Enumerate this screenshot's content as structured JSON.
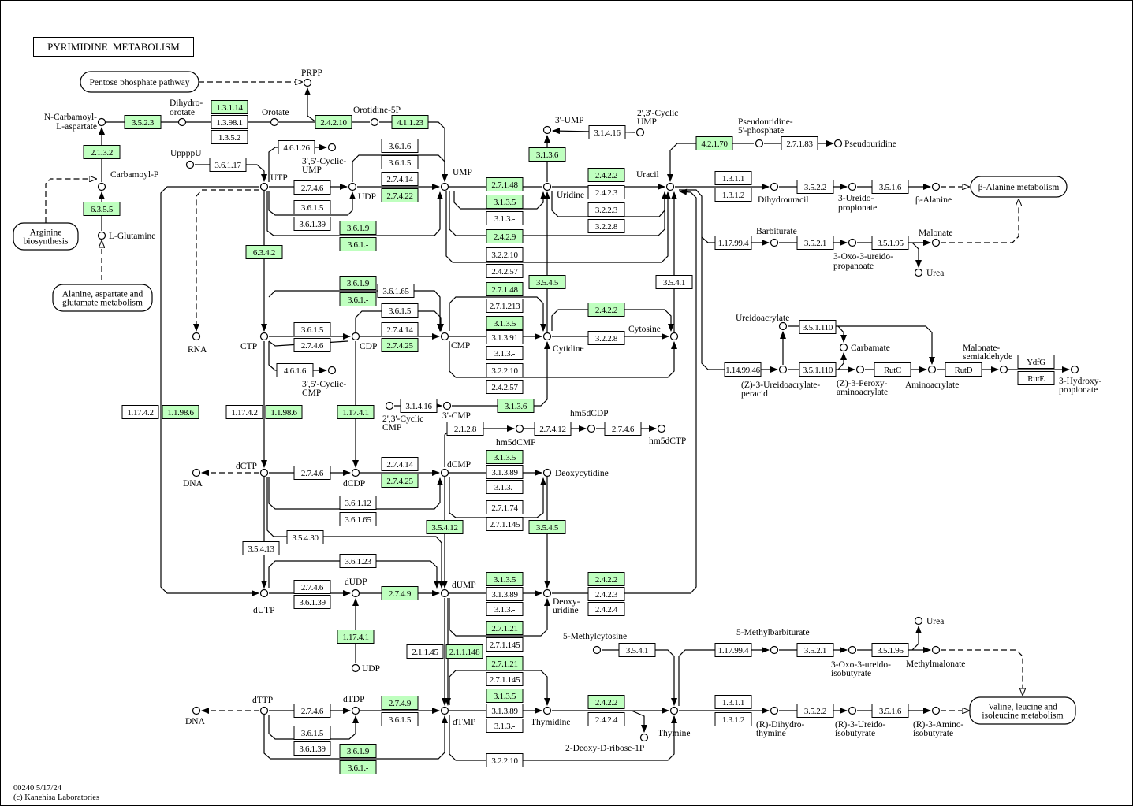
{
  "title": "PYRIMIDINE  METABOLISM",
  "footer": {
    "code_date": "00240 5/17/24",
    "copyright": "(c) Kanehisa Laboratories"
  },
  "colors": {
    "highlighted_enzyme": "#bfffbf",
    "enzyme": "#ffffff",
    "line": "#000000"
  },
  "maps": [
    {
      "lines": [
        "Pentose phosphate pathway"
      ]
    },
    {
      "lines": [
        "Arginine",
        "biosynthesis"
      ]
    },
    {
      "lines": [
        "Alanine, aspartate and",
        "glutamate metabolism"
      ]
    },
    {
      "lines": [
        "β-Alanine metabolism"
      ]
    },
    {
      "lines": [
        "Valine, leucine and",
        "isoleucine metabolism"
      ]
    }
  ],
  "enzymes": [
    {
      "label": "3.5.2.3",
      "highlighted": true
    },
    {
      "label": "1.3.1.14",
      "highlighted": true
    },
    {
      "label": "1.3.98.1",
      "highlighted": false
    },
    {
      "label": "1.3.5.2",
      "highlighted": false
    },
    {
      "label": "2.4.2.10",
      "highlighted": true
    },
    {
      "label": "4.1.1.23",
      "highlighted": true
    },
    {
      "label": "2.1.3.2",
      "highlighted": true
    },
    {
      "label": "6.3.5.5",
      "highlighted": true
    },
    {
      "label": "3.6.1.17",
      "highlighted": false
    },
    {
      "label": "4.6.1.26",
      "highlighted": false
    },
    {
      "label": "2.7.4.6",
      "highlighted": false
    },
    {
      "label": "3.6.1.5",
      "highlighted": false
    },
    {
      "label": "3.6.1.39",
      "highlighted": false
    },
    {
      "label": "3.6.1.6",
      "highlighted": false
    },
    {
      "label": "3.6.1.5",
      "highlighted": false
    },
    {
      "label": "2.7.4.14",
      "highlighted": false
    },
    {
      "label": "2.7.4.22",
      "highlighted": true
    },
    {
      "label": "3.6.1.9",
      "highlighted": true
    },
    {
      "label": "3.6.1.-",
      "highlighted": true
    },
    {
      "label": "6.3.4.2",
      "highlighted": true
    },
    {
      "label": "3.1.3.6",
      "highlighted": true
    },
    {
      "label": "3.1.4.16",
      "highlighted": false
    },
    {
      "label": "2.7.1.48",
      "highlighted": true
    },
    {
      "label": "3.1.3.5",
      "highlighted": true
    },
    {
      "label": "3.1.3.-",
      "highlighted": false
    },
    {
      "label": "2.4.2.9",
      "highlighted": true
    },
    {
      "label": "3.2.2.10",
      "highlighted": false
    },
    {
      "label": "2.4.2.57",
      "highlighted": false
    },
    {
      "label": "2.4.2.2",
      "highlighted": true
    },
    {
      "label": "2.4.2.3",
      "highlighted": false
    },
    {
      "label": "3.2.2.3",
      "highlighted": false
    },
    {
      "label": "3.2.2.8",
      "highlighted": false
    },
    {
      "label": "4.2.1.70",
      "highlighted": true
    },
    {
      "label": "2.7.1.83",
      "highlighted": false
    },
    {
      "label": "1.3.1.1",
      "highlighted": false
    },
    {
      "label": "1.3.1.2",
      "highlighted": false
    },
    {
      "label": "3.5.2.2",
      "highlighted": false
    },
    {
      "label": "3.5.1.6",
      "highlighted": false
    },
    {
      "label": "1.17.99.4",
      "highlighted": false
    },
    {
      "label": "3.5.2.1",
      "highlighted": false
    },
    {
      "label": "3.5.1.95",
      "highlighted": false
    },
    {
      "label": "3.5.4.1",
      "highlighted": false
    },
    {
      "label": "3.5.4.5",
      "highlighted": true
    },
    {
      "label": "3.6.1.9",
      "highlighted": true
    },
    {
      "label": "3.6.1.-",
      "highlighted": true
    },
    {
      "label": "3.6.1.65",
      "highlighted": false
    },
    {
      "label": "3.6.1.5",
      "highlighted": false
    },
    {
      "label": "2.7.4.6",
      "highlighted": false
    },
    {
      "label": "3.6.1.5",
      "highlighted": false
    },
    {
      "label": "2.7.4.14",
      "highlighted": false
    },
    {
      "label": "2.7.4.25",
      "highlighted": true
    },
    {
      "label": "2.7.1.48",
      "highlighted": true
    },
    {
      "label": "2.7.1.213",
      "highlighted": false
    },
    {
      "label": "3.1.3.5",
      "highlighted": true
    },
    {
      "label": "3.1.3.91",
      "highlighted": false
    },
    {
      "label": "3.1.3.-",
      "highlighted": false
    },
    {
      "label": "3.2.2.10",
      "highlighted": false
    },
    {
      "label": "2.4.2.57",
      "highlighted": false
    },
    {
      "label": "2.4.2.2",
      "highlighted": true
    },
    {
      "label": "3.2.2.8",
      "highlighted": false
    },
    {
      "label": "4.6.1.6",
      "highlighted": false
    },
    {
      "label": "3.5.1.110",
      "highlighted": false
    },
    {
      "label": "1.14.99.46",
      "highlighted": false
    },
    {
      "label": "3.5.1.110",
      "highlighted": false
    },
    {
      "label": "RutC",
      "highlighted": false
    },
    {
      "label": "RutD",
      "highlighted": false
    },
    {
      "label": "YdfG",
      "highlighted": false
    },
    {
      "label": "RutE",
      "highlighted": false
    },
    {
      "label": "3.1.4.16",
      "highlighted": false
    },
    {
      "label": "3.1.3.6",
      "highlighted": true
    },
    {
      "label": "1.17.4.2",
      "highlighted": false
    },
    {
      "label": "1.1.98.6",
      "highlighted": true
    },
    {
      "label": "1.17.4.2",
      "highlighted": false
    },
    {
      "label": "1.1.98.6",
      "highlighted": true
    },
    {
      "label": "1.17.4.1",
      "highlighted": true
    },
    {
      "label": "2.1.2.8",
      "highlighted": false
    },
    {
      "label": "2.7.4.12",
      "highlighted": false
    },
    {
      "label": "2.7.4.6",
      "highlighted": false
    },
    {
      "label": "3.1.3.5",
      "highlighted": true
    },
    {
      "label": "3.1.3.89",
      "highlighted": false
    },
    {
      "label": "3.1.3.-",
      "highlighted": false
    },
    {
      "label": "2.7.1.74",
      "highlighted": false
    },
    {
      "label": "2.7.1.145",
      "highlighted": false
    },
    {
      "label": "2.7.4.14",
      "highlighted": false
    },
    {
      "label": "2.7.4.25",
      "highlighted": true
    },
    {
      "label": "2.7.4.6",
      "highlighted": false
    },
    {
      "label": "3.6.1.12",
      "highlighted": false
    },
    {
      "label": "3.6.1.65",
      "highlighted": false
    },
    {
      "label": "3.5.4.12",
      "highlighted": true
    },
    {
      "label": "3.5.4.5",
      "highlighted": true
    },
    {
      "label": "3.5.4.30",
      "highlighted": false
    },
    {
      "label": "3.5.4.13",
      "highlighted": false
    },
    {
      "label": "3.6.1.23",
      "highlighted": false
    },
    {
      "label": "2.7.4.6",
      "highlighted": false
    },
    {
      "label": "3.6.1.39",
      "highlighted": false
    },
    {
      "label": "2.7.4.9",
      "highlighted": true
    },
    {
      "label": "3.1.3.5",
      "highlighted": true
    },
    {
      "label": "3.1.3.89",
      "highlighted": false
    },
    {
      "label": "3.1.3.-",
      "highlighted": false
    },
    {
      "label": "2.7.1.21",
      "highlighted": true
    },
    {
      "label": "2.7.1.145",
      "highlighted": false
    },
    {
      "label": "2.4.2.2",
      "highlighted": true
    },
    {
      "label": "2.4.2.3",
      "highlighted": false
    },
    {
      "label": "2.4.2.4",
      "highlighted": false
    },
    {
      "label": "1.17.4.1",
      "highlighted": true
    },
    {
      "label": "2.1.1.45",
      "highlighted": false
    },
    {
      "label": "2.1.1.148",
      "highlighted": true
    },
    {
      "label": "3.5.4.1",
      "highlighted": false
    },
    {
      "label": "1.17.99.4",
      "highlighted": false
    },
    {
      "label": "3.5.2.1",
      "highlighted": false
    },
    {
      "label": "3.5.1.95",
      "highlighted": false
    },
    {
      "label": "2.7.1.21",
      "highlighted": true
    },
    {
      "label": "2.7.1.145",
      "highlighted": false
    },
    {
      "label": "3.1.3.5",
      "highlighted": true
    },
    {
      "label": "3.1.3.89",
      "highlighted": false
    },
    {
      "label": "3.1.3.-",
      "highlighted": false
    },
    {
      "label": "2.4.2.2",
      "highlighted": true
    },
    {
      "label": "2.4.2.4",
      "highlighted": false
    },
    {
      "label": "1.3.1.1",
      "highlighted": false
    },
    {
      "label": "1.3.1.2",
      "highlighted": false
    },
    {
      "label": "3.5.2.2",
      "highlighted": false
    },
    {
      "label": "3.5.1.6",
      "highlighted": false
    },
    {
      "label": "2.7.4.6",
      "highlighted": false
    },
    {
      "label": "3.6.1.5",
      "highlighted": false
    },
    {
      "label": "3.6.1.39",
      "highlighted": false
    },
    {
      "label": "2.7.4.9",
      "highlighted": true
    },
    {
      "label": "3.6.1.5",
      "highlighted": false
    },
    {
      "label": "3.6.1.9",
      "highlighted": true
    },
    {
      "label": "3.6.1.-",
      "highlighted": true
    },
    {
      "label": "3.2.2.10",
      "highlighted": false
    }
  ],
  "compounds": [
    {
      "lines": [
        "PRPP"
      ]
    },
    {
      "lines": [
        "N-Carbamoyl-",
        "L-aspartate"
      ]
    },
    {
      "lines": [
        "Dihydro-",
        "orotate"
      ]
    },
    {
      "lines": [
        "Orotate"
      ]
    },
    {
      "lines": [
        "Orotidine-5P"
      ]
    },
    {
      "lines": [
        "Carbamoyl-P"
      ]
    },
    {
      "lines": [
        "L-Glutamine"
      ]
    },
    {
      "lines": [
        "UppppU"
      ]
    },
    {
      "lines": [
        "UTP"
      ]
    },
    {
      "lines": [
        "3',5'-Cyclic-",
        "UMP"
      ]
    },
    {
      "lines": [
        "UDP"
      ]
    },
    {
      "lines": [
        "UMP"
      ]
    },
    {
      "lines": [
        "3'-UMP"
      ]
    },
    {
      "lines": [
        "2',3'-Cyclic",
        "UMP"
      ]
    },
    {
      "lines": [
        "Uridine"
      ]
    },
    {
      "lines": [
        "Uracil"
      ]
    },
    {
      "lines": [
        "Pseudouridine-",
        "5'-phosphate"
      ]
    },
    {
      "lines": [
        "Pseudouridine"
      ]
    },
    {
      "lines": [
        "Dihydrouracil"
      ]
    },
    {
      "lines": [
        "3-Ureido-",
        "propionate"
      ]
    },
    {
      "lines": [
        "β-Alanine"
      ]
    },
    {
      "lines": [
        "Barbiturate"
      ]
    },
    {
      "lines": [
        "3-Oxo-3-ureido-",
        "propanoate"
      ]
    },
    {
      "lines": [
        "Malonate"
      ]
    },
    {
      "lines": [
        "Urea"
      ]
    },
    {
      "lines": [
        "RNA"
      ]
    },
    {
      "lines": [
        "CTP"
      ]
    },
    {
      "lines": [
        "CDP"
      ]
    },
    {
      "lines": [
        "CMP"
      ]
    },
    {
      "lines": [
        "Cytidine"
      ]
    },
    {
      "lines": [
        "Cytosine"
      ]
    },
    {
      "lines": [
        "3',5'-Cyclic-",
        "CMP"
      ]
    },
    {
      "lines": [
        "2',3'-Cyclic",
        "CMP"
      ]
    },
    {
      "lines": [
        "3'-CMP"
      ]
    },
    {
      "lines": [
        "Ureidoacrylate"
      ]
    },
    {
      "lines": [
        "Carbamate"
      ]
    },
    {
      "lines": [
        "(Z)-3-Ureidoacrylate-",
        "peracid"
      ]
    },
    {
      "lines": [
        "(Z)-3-Peroxy-",
        "aminoacrylate"
      ]
    },
    {
      "lines": [
        "Aminoacrylate"
      ]
    },
    {
      "lines": [
        "Malonate-",
        "semialdehyde"
      ]
    },
    {
      "lines": [
        "3-Hydroxy-",
        "propionate"
      ]
    },
    {
      "lines": [
        "hm5dCMP"
      ]
    },
    {
      "lines": [
        "hm5dCDP"
      ]
    },
    {
      "lines": [
        "hm5dCTP"
      ]
    },
    {
      "lines": [
        "DNA"
      ]
    },
    {
      "lines": [
        "dCTP"
      ]
    },
    {
      "lines": [
        "dCDP"
      ]
    },
    {
      "lines": [
        "dCMP"
      ]
    },
    {
      "lines": [
        "Deoxycytidine"
      ]
    },
    {
      "lines": [
        "dUTP"
      ]
    },
    {
      "lines": [
        "dUDP"
      ]
    },
    {
      "lines": [
        "dUMP"
      ]
    },
    {
      "lines": [
        "Deoxy-",
        "uridine"
      ]
    },
    {
      "lines": [
        "UDP"
      ]
    },
    {
      "lines": [
        "5-Methylcytosine"
      ]
    },
    {
      "lines": [
        "5-Methylbarbiturate"
      ]
    },
    {
      "lines": [
        "3-Oxo-3-ureido-",
        "isobutyrate"
      ]
    },
    {
      "lines": [
        "Methylmalonate"
      ]
    },
    {
      "lines": [
        "Urea"
      ]
    },
    {
      "lines": [
        "dTTP"
      ]
    },
    {
      "lines": [
        "DNA"
      ]
    },
    {
      "lines": [
        "dTDP"
      ]
    },
    {
      "lines": [
        "dTMP"
      ]
    },
    {
      "lines": [
        "Thymidine"
      ]
    },
    {
      "lines": [
        "2-Deoxy-D-ribose-1P"
      ]
    },
    {
      "lines": [
        "Thymine"
      ]
    },
    {
      "lines": [
        "(R)-Dihydro-",
        "thymine"
      ]
    },
    {
      "lines": [
        "(R)-3-Ureido-",
        "isobutyrate"
      ]
    },
    {
      "lines": [
        "(R)-3-Amino-",
        "isobutyrate"
      ]
    }
  ]
}
